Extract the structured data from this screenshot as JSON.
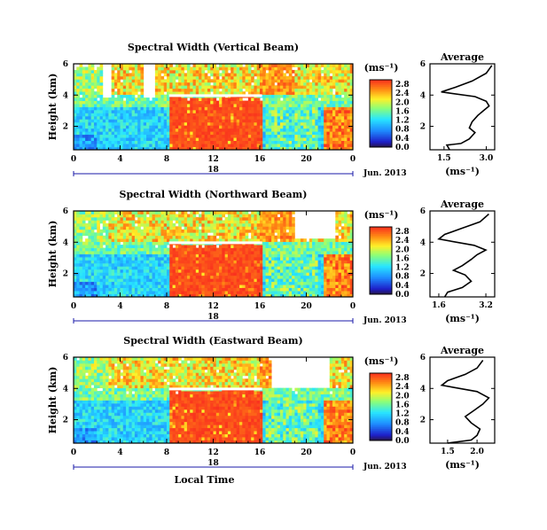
{
  "chart_data": [
    {
      "type": "heatmap",
      "title": "Spectral Width (Vertical Beam)",
      "ylabel": "Height (km)",
      "ylim": [
        0.5,
        6
      ],
      "y_ticks": [
        "2",
        "4",
        "6"
      ],
      "x_ticks": [
        "0",
        "4",
        "8",
        "12",
        "16",
        "20",
        "0"
      ],
      "xlim": [
        0,
        24
      ],
      "date_marker": "18",
      "date_caption": "Jun. 2013",
      "colorbar": {
        "unit": "(ms⁻¹)",
        "labels": [
          "0.0",
          "0.4",
          "0.8",
          "1.2",
          "1.6",
          "2.0",
          "2.4",
          "2.8"
        ],
        "range": [
          0.0,
          3.0
        ]
      },
      "profile": {
        "title": "Average",
        "xlabel": "(ms⁻¹)",
        "x_ticks": [
          "1.5",
          "3.0"
        ],
        "xlim": [
          1.0,
          3.3
        ],
        "y_ticks": [
          "2",
          "4",
          "6"
        ],
        "ylim": [
          0.5,
          6
        ],
        "points": [
          [
            1.7,
            0.5
          ],
          [
            1.6,
            0.8
          ],
          [
            2.1,
            0.9
          ],
          [
            2.4,
            1.2
          ],
          [
            2.6,
            1.6
          ],
          [
            2.4,
            1.9
          ],
          [
            2.5,
            2.3
          ],
          [
            2.7,
            2.7
          ],
          [
            2.9,
            3.0
          ],
          [
            3.1,
            3.3
          ],
          [
            3.0,
            3.6
          ],
          [
            2.6,
            3.9
          ],
          [
            1.4,
            4.2
          ],
          [
            1.9,
            4.5
          ],
          [
            2.5,
            4.9
          ],
          [
            3.0,
            5.4
          ],
          [
            3.2,
            5.9
          ]
        ]
      }
    },
    {
      "type": "heatmap",
      "title": "Spectral Width (Northward Beam)",
      "ylabel": "Height (km)",
      "ylim": [
        0.5,
        6
      ],
      "y_ticks": [
        "2",
        "4",
        "6"
      ],
      "x_ticks": [
        "0",
        "4",
        "8",
        "12",
        "16",
        "20",
        "0"
      ],
      "xlim": [
        0,
        24
      ],
      "date_marker": "18",
      "date_caption": "Jun. 2013",
      "colorbar": {
        "unit": "(ms⁻¹)",
        "labels": [
          "0.0",
          "0.4",
          "0.8",
          "1.2",
          "1.6",
          "2.0",
          "2.4",
          "2.8"
        ],
        "range": [
          0.0,
          3.0
        ]
      },
      "profile": {
        "title": "Average",
        "xlabel": "(ms⁻¹)",
        "x_ticks": [
          "1.6",
          "3.2"
        ],
        "xlim": [
          1.3,
          3.5
        ],
        "y_ticks": [
          "2",
          "4",
          "6"
        ],
        "ylim": [
          0.5,
          6
        ],
        "points": [
          [
            1.8,
            0.5
          ],
          [
            1.9,
            0.8
          ],
          [
            2.4,
            1.1
          ],
          [
            2.7,
            1.5
          ],
          [
            2.5,
            1.9
          ],
          [
            2.1,
            2.2
          ],
          [
            2.4,
            2.5
          ],
          [
            2.7,
            2.9
          ],
          [
            2.9,
            3.2
          ],
          [
            3.2,
            3.5
          ],
          [
            2.8,
            3.8
          ],
          [
            1.6,
            4.2
          ],
          [
            1.8,
            4.5
          ],
          [
            2.4,
            4.9
          ],
          [
            3.0,
            5.3
          ],
          [
            3.3,
            5.8
          ]
        ]
      }
    },
    {
      "type": "heatmap",
      "title": "Spectral Width (Eastward Beam)",
      "ylabel": "Height (km)",
      "ylim": [
        0.5,
        6
      ],
      "y_ticks": [
        "2",
        "4",
        "6"
      ],
      "x_ticks": [
        "0",
        "4",
        "8",
        "12",
        "16",
        "20",
        "0"
      ],
      "xlim": [
        0,
        24
      ],
      "date_marker": "18",
      "date_caption": "Jun. 2013",
      "xlabel": "Local Time",
      "colorbar": {
        "unit": "(ms⁻¹)",
        "labels": [
          "0.0",
          "0.4",
          "0.8",
          "1.2",
          "1.6",
          "2.0",
          "2.4",
          "2.8"
        ],
        "range": [
          0.0,
          3.0
        ]
      },
      "profile": {
        "title": "Average",
        "xlabel": "(ms⁻¹)",
        "x_ticks": [
          "1.5",
          "2.0"
        ],
        "xlim": [
          1.2,
          2.3
        ],
        "y_ticks": [
          "2",
          "4",
          "6"
        ],
        "ylim": [
          0.5,
          6
        ],
        "points": [
          [
            1.5,
            0.5
          ],
          [
            1.9,
            0.7
          ],
          [
            2.0,
            1.0
          ],
          [
            2.05,
            1.4
          ],
          [
            1.9,
            1.8
          ],
          [
            1.8,
            2.2
          ],
          [
            1.95,
            2.6
          ],
          [
            2.1,
            3.0
          ],
          [
            2.2,
            3.4
          ],
          [
            2.0,
            3.8
          ],
          [
            1.4,
            4.2
          ],
          [
            1.5,
            4.5
          ],
          [
            1.8,
            4.9
          ],
          [
            2.0,
            5.3
          ],
          [
            2.1,
            5.8
          ]
        ]
      }
    }
  ]
}
